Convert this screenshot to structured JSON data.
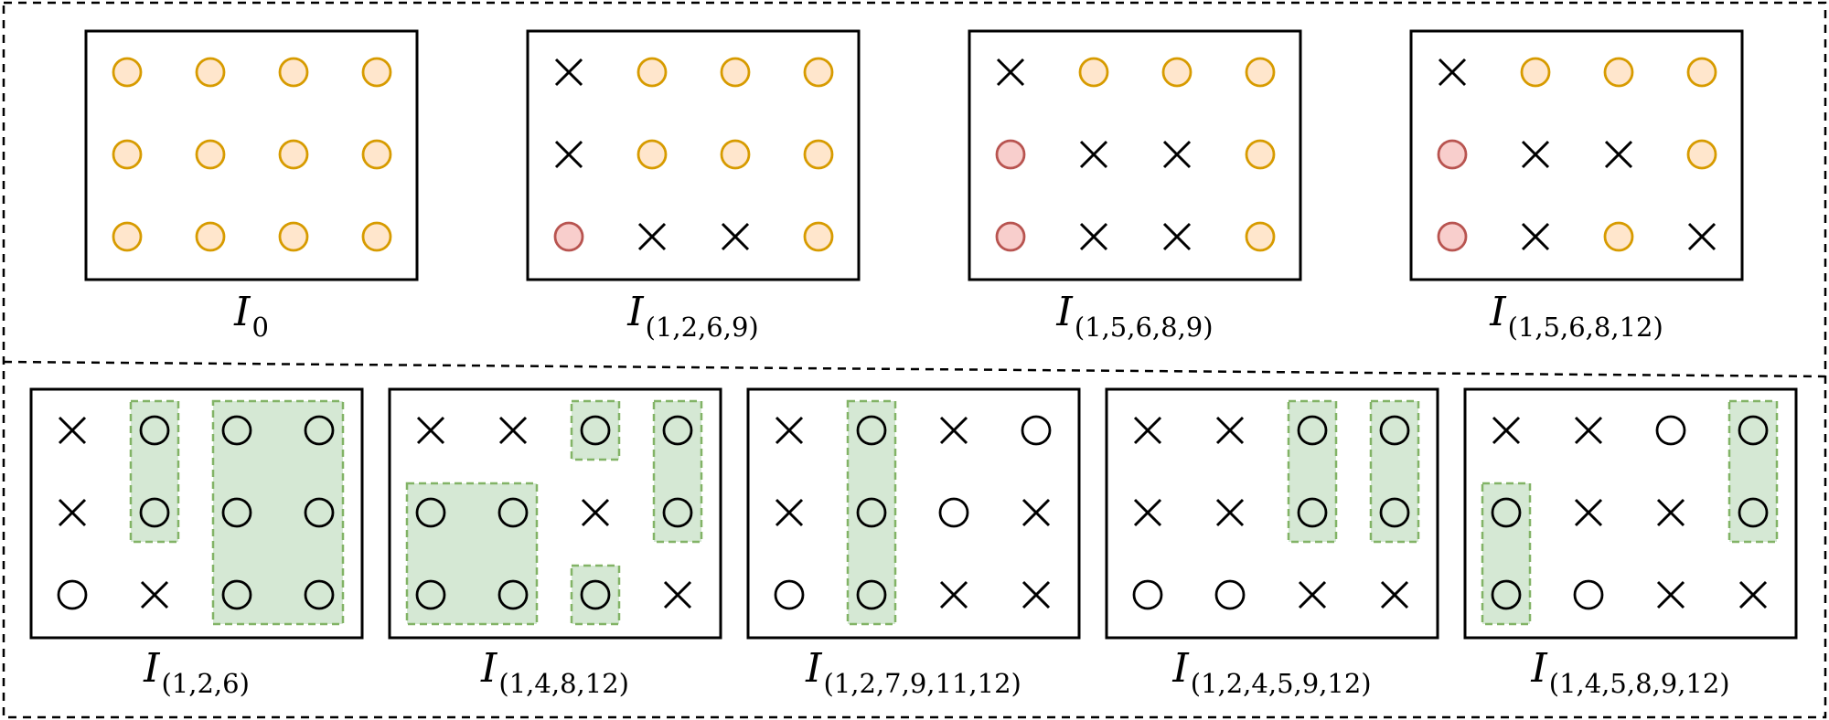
{
  "colors": {
    "orange_fill": "#ffe6cc",
    "orange_stroke": "#d79b00",
    "red_fill": "#f8cecc",
    "red_stroke": "#b85450",
    "green_fill": "#d5e8d4",
    "green_stroke": "#82b366",
    "line": "#000000"
  },
  "legend_symbols": {
    "o": "orange-circle",
    "r": "red-circle",
    "x": "cross",
    "c": "hollow-circle"
  },
  "top_row": [
    {
      "label_main": "I",
      "label_sub": "0",
      "grid": [
        [
          "o",
          "o",
          "o",
          "o"
        ],
        [
          "o",
          "o",
          "o",
          "o"
        ],
        [
          "o",
          "o",
          "o",
          "o"
        ]
      ],
      "highlights": []
    },
    {
      "label_main": "I",
      "label_sub": "(1,2,6,9)",
      "grid": [
        [
          "x",
          "o",
          "o",
          "o"
        ],
        [
          "x",
          "o",
          "o",
          "o"
        ],
        [
          "r",
          "x",
          "x",
          "o"
        ]
      ],
      "highlights": []
    },
    {
      "label_main": "I",
      "label_sub": "(1,5,6,8,9)",
      "grid": [
        [
          "x",
          "o",
          "o",
          "o"
        ],
        [
          "r",
          "x",
          "x",
          "o"
        ],
        [
          "r",
          "x",
          "x",
          "o"
        ]
      ],
      "highlights": []
    },
    {
      "label_main": "I",
      "label_sub": "(1,5,6,8,12)",
      "grid": [
        [
          "x",
          "o",
          "o",
          "o"
        ],
        [
          "r",
          "x",
          "x",
          "o"
        ],
        [
          "r",
          "x",
          "o",
          "x"
        ]
      ],
      "highlights": []
    }
  ],
  "bottom_row": [
    {
      "label_main": "I",
      "label_sub": "(1,2,6)",
      "grid": [
        [
          "x",
          "c",
          "c",
          "c"
        ],
        [
          "x",
          "c",
          "c",
          "c"
        ],
        [
          "c",
          "x",
          "c",
          "c"
        ]
      ],
      "highlights": [
        {
          "col_start": 1,
          "col_end": 1,
          "row_start": 0,
          "row_end": 1
        },
        {
          "col_start": 2,
          "col_end": 3,
          "row_start": 0,
          "row_end": 2
        }
      ]
    },
    {
      "label_main": "I",
      "label_sub": "(1,4,8,12)",
      "grid": [
        [
          "x",
          "x",
          "c",
          "c"
        ],
        [
          "c",
          "c",
          "x",
          "c"
        ],
        [
          "c",
          "c",
          "c",
          "x"
        ]
      ],
      "highlights": [
        {
          "col_start": 2,
          "col_end": 2,
          "row_start": 0,
          "row_end": 0
        },
        {
          "col_start": 3,
          "col_end": 3,
          "row_start": 0,
          "row_end": 1
        },
        {
          "col_start": 0,
          "col_end": 1,
          "row_start": 1,
          "row_end": 2
        },
        {
          "col_start": 2,
          "col_end": 2,
          "row_start": 2,
          "row_end": 2
        }
      ]
    },
    {
      "label_main": "I",
      "label_sub": "(1,2,7,9,11,12)",
      "grid": [
        [
          "x",
          "c",
          "x",
          "c"
        ],
        [
          "x",
          "c",
          "c",
          "x"
        ],
        [
          "c",
          "c",
          "x",
          "x"
        ]
      ],
      "highlights": [
        {
          "col_start": 1,
          "col_end": 1,
          "row_start": 0,
          "row_end": 2
        }
      ]
    },
    {
      "label_main": "I",
      "label_sub": "(1,2,4,5,9,12)",
      "grid": [
        [
          "x",
          "x",
          "c",
          "c"
        ],
        [
          "x",
          "x",
          "c",
          "c"
        ],
        [
          "c",
          "c",
          "x",
          "x"
        ]
      ],
      "highlights": [
        {
          "col_start": 2,
          "col_end": 2,
          "row_start": 0,
          "row_end": 1
        },
        {
          "col_start": 3,
          "col_end": 3,
          "row_start": 0,
          "row_end": 1
        }
      ]
    },
    {
      "label_main": "I",
      "label_sub": "(1,4,5,8,9,12)",
      "grid": [
        [
          "x",
          "x",
          "c",
          "c"
        ],
        [
          "c",
          "x",
          "x",
          "c"
        ],
        [
          "c",
          "c",
          "x",
          "x"
        ]
      ],
      "highlights": [
        {
          "col_start": 3,
          "col_end": 3,
          "row_start": 0,
          "row_end": 1
        },
        {
          "col_start": 0,
          "col_end": 0,
          "row_start": 1,
          "row_end": 2
        }
      ]
    }
  ]
}
